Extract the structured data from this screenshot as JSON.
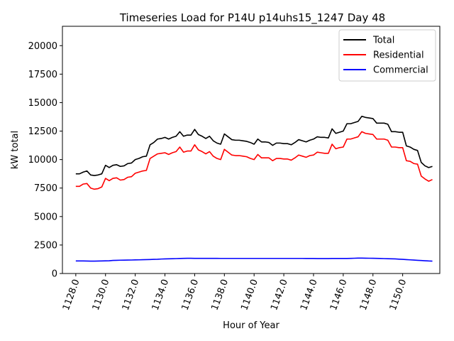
{
  "chart_data": {
    "type": "line",
    "title": "Timeseries Load for P14U p14uhs15_1247  Day 48",
    "xlabel": "Hour of Year",
    "ylabel": "kW total",
    "xlim": [
      1127.1,
      1152.5
    ],
    "ylim": [
      0,
      21700
    ],
    "xticks": [
      1128,
      1130,
      1132,
      1134,
      1136,
      1138,
      1140,
      1142,
      1144,
      1146,
      1148,
      1150
    ],
    "xtick_labels": [
      "1128.0",
      "1130.0",
      "1132.0",
      "1134.0",
      "1136.0",
      "1138.0",
      "1140.0",
      "1142.0",
      "1144.0",
      "1146.0",
      "1148.0",
      "1150.0"
    ],
    "yticks": [
      0,
      2500,
      5000,
      7500,
      10000,
      12500,
      15000,
      17500,
      20000
    ],
    "ytick_labels": [
      "0",
      "2500",
      "5000",
      "7500",
      "10000",
      "12500",
      "15000",
      "17500",
      "20000"
    ],
    "legend": {
      "placement": "top-right"
    },
    "x_start": 1128.0,
    "x_step": 0.25,
    "series": [
      {
        "name": "Total",
        "color": "#000000",
        "values": [
          8750,
          8750,
          8900,
          9000,
          8650,
          8600,
          8650,
          8750,
          9500,
          9300,
          9500,
          9550,
          9400,
          9450,
          9650,
          9700,
          10000,
          10100,
          10250,
          10300,
          11300,
          11500,
          11800,
          11850,
          11950,
          11800,
          11950,
          12050,
          12450,
          12050,
          12150,
          12150,
          12650,
          12200,
          12050,
          11850,
          12050,
          11650,
          11450,
          11350,
          12250,
          12000,
          11750,
          11700,
          11700,
          11650,
          11600,
          11500,
          11350,
          11800,
          11550,
          11550,
          11500,
          11250,
          11450,
          11450,
          11400,
          11400,
          11300,
          11500,
          11750,
          11650,
          11550,
          11700,
          11800,
          12000,
          11950,
          11950,
          11900,
          12700,
          12300,
          12400,
          12500,
          13150,
          13150,
          13250,
          13350,
          13800,
          13700,
          13650,
          13600,
          13200,
          13200,
          13200,
          13100,
          12450,
          12450,
          12400,
          12400,
          11200,
          11100,
          10900,
          10800,
          9750,
          9450,
          9300,
          9400
        ]
      },
      {
        "name": "Residential",
        "color": "#ff0000",
        "values": [
          7650,
          7650,
          7850,
          7900,
          7500,
          7400,
          7450,
          7600,
          8350,
          8150,
          8350,
          8400,
          8200,
          8250,
          8450,
          8500,
          8800,
          8900,
          9000,
          9050,
          10100,
          10300,
          10500,
          10550,
          10600,
          10450,
          10600,
          10700,
          11100,
          10650,
          10750,
          10750,
          11300,
          10850,
          10700,
          10500,
          10700,
          10300,
          10100,
          10000,
          10900,
          10650,
          10400,
          10350,
          10350,
          10300,
          10250,
          10100,
          10000,
          10450,
          10150,
          10150,
          10150,
          9900,
          10100,
          10100,
          10050,
          10050,
          9950,
          10150,
          10400,
          10300,
          10200,
          10350,
          10400,
          10650,
          10600,
          10550,
          10550,
          11350,
          10950,
          11050,
          11100,
          11800,
          11800,
          11900,
          12000,
          12450,
          12300,
          12250,
          12200,
          11800,
          11800,
          11800,
          11700,
          11100,
          11100,
          11050,
          11050,
          9900,
          9850,
          9650,
          9600,
          8550,
          8300,
          8100,
          8250
        ]
      },
      {
        "name": "Commercial",
        "color": "#0000ff",
        "values": [
          1100,
          1100,
          1100,
          1095,
          1090,
          1090,
          1095,
          1100,
          1110,
          1120,
          1150,
          1160,
          1170,
          1175,
          1180,
          1185,
          1195,
          1200,
          1210,
          1220,
          1230,
          1240,
          1250,
          1270,
          1280,
          1290,
          1300,
          1310,
          1320,
          1330,
          1335,
          1335,
          1330,
          1330,
          1330,
          1330,
          1330,
          1330,
          1330,
          1325,
          1325,
          1325,
          1325,
          1325,
          1325,
          1325,
          1325,
          1325,
          1325,
          1325,
          1325,
          1325,
          1325,
          1325,
          1325,
          1325,
          1325,
          1325,
          1325,
          1325,
          1325,
          1325,
          1320,
          1320,
          1320,
          1315,
          1315,
          1315,
          1315,
          1320,
          1320,
          1320,
          1320,
          1320,
          1330,
          1340,
          1350,
          1350,
          1345,
          1340,
          1335,
          1330,
          1320,
          1310,
          1300,
          1290,
          1280,
          1260,
          1240,
          1220,
          1200,
          1180,
          1160,
          1140,
          1120,
          1100,
          1090
        ]
      }
    ]
  }
}
